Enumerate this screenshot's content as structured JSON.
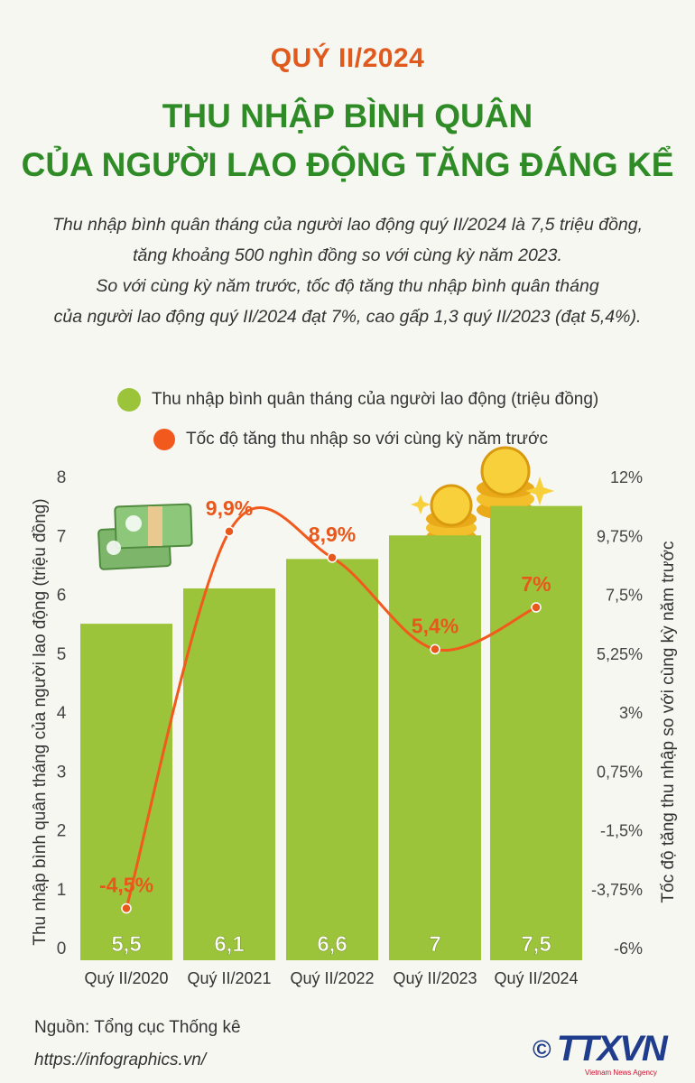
{
  "header": {
    "kicker": "QUÝ II/2024",
    "title_line1": "THU NHẬP BÌNH QUÂN",
    "title_line2": "CỦA NGƯỜI LAO ĐỘNG TĂNG ĐÁNG KỂ"
  },
  "summary": {
    "line1": "Thu nhập bình quân tháng của người lao động quý II/2024 là 7,5 triệu đồng,",
    "line2": "tăng khoảng 500 nghìn đồng so với cùng kỳ năm 2023.",
    "line3": "So với cùng kỳ năm trước, tốc độ tăng thu nhập bình quân tháng",
    "line4": "của người lao động quý II/2024 đạt 7%, cao gấp 1,3 quý II/2023 (đạt 5,4%)."
  },
  "colors": {
    "bar": "#9cc43a",
    "line": "#f25a1d",
    "label_orange": "#e8581d",
    "title_green": "#2e8b26"
  },
  "chart_data": {
    "type": "bar",
    "categories": [
      "Quý II/2020",
      "Quý II/2021",
      "Quý II/2022",
      "Quý II/2023",
      "Quý II/2024"
    ],
    "series": [
      {
        "name": "Thu nhập bình quân tháng của người lao động (triệu đồng)",
        "type": "bar",
        "axis": "left",
        "values": [
          5.5,
          6.1,
          6.6,
          7,
          7.5
        ],
        "labels": [
          "5,5",
          "6,1",
          "6,6",
          "7",
          "7,5"
        ]
      },
      {
        "name": "Tốc độ tăng thu nhập so với cùng kỳ năm trước",
        "type": "line",
        "axis": "right",
        "values": [
          -4.5,
          9.9,
          8.9,
          5.4,
          7
        ],
        "labels": [
          "-4,5%",
          "9,9%",
          "8,9%",
          "5,4%",
          "7%"
        ]
      }
    ],
    "y_left": {
      "label": "Thu nhập bình quân tháng của người lao động (triệu đồng)",
      "ylim": [
        0,
        8
      ],
      "ticks": [
        0,
        1,
        2,
        3,
        4,
        5,
        6,
        7,
        8
      ],
      "tick_labels": [
        "0",
        "1",
        "2",
        "3",
        "4",
        "5",
        "6",
        "7",
        "8"
      ]
    },
    "y_right": {
      "label": "Tốc độ tăng thu nhập so với cùng kỳ năm trước",
      "ylim": [
        -6,
        12
      ],
      "ticks": [
        -6,
        -3.75,
        -1.5,
        0.75,
        3,
        5.25,
        7.5,
        9.75,
        12
      ],
      "tick_labels": [
        "-6%",
        "-3,75%",
        "-1,5%",
        "0,75%",
        "3%",
        "5,25%",
        "7,5%",
        "9,75%",
        "12%"
      ]
    },
    "grid": false,
    "legend_placement": "top"
  },
  "footer": {
    "source": "Nguồn: Tổng cục Thống kê",
    "url": "https://infographics.vn/",
    "logo_symbol": "©",
    "logo_text": "TTXVN",
    "logo_sub": "Vietnam News Agency"
  }
}
